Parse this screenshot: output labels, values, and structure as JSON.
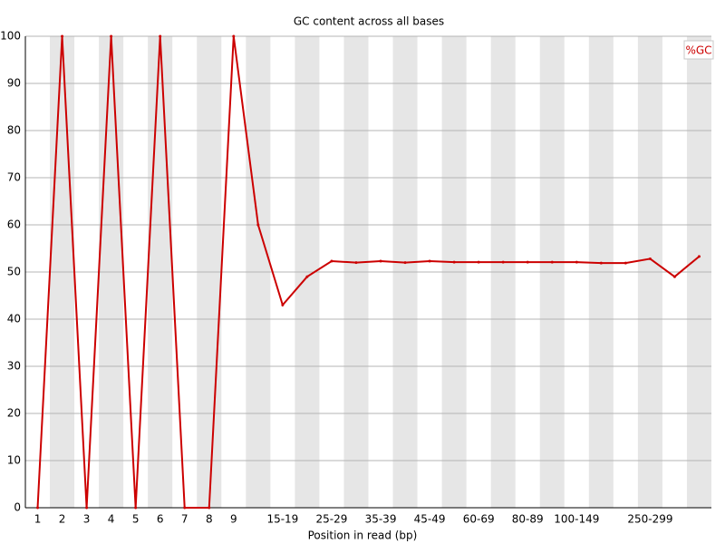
{
  "chart_data": {
    "type": "line",
    "title": "GC content across all bases",
    "x_label": "Position in read (bp)",
    "categories": [
      "1",
      "2",
      "3",
      "4",
      "5",
      "6",
      "7",
      "8",
      "9",
      null,
      "15-19",
      null,
      "25-29",
      null,
      "35-39",
      null,
      "45-49",
      null,
      "60-69",
      null,
      "80-89",
      null,
      "100-149",
      null,
      null,
      "250-299",
      null,
      null
    ],
    "series": [
      {
        "name": "%GC",
        "color": "#cc0000",
        "values": [
          0,
          100,
          0,
          100,
          0,
          100,
          0,
          0,
          100,
          60,
          43,
          49,
          52.3,
          52,
          52.3,
          52,
          52.3,
          52.1,
          52.1,
          52.1,
          52.1,
          52.1,
          52.1,
          51.9,
          51.9,
          52.8,
          49,
          53.3
        ]
      }
    ],
    "ylim": [
      0,
      100
    ],
    "yticks": [
      0,
      10,
      20,
      30,
      40,
      50,
      60,
      70,
      80,
      90,
      100
    ],
    "grid": true,
    "legend": "top-right"
  }
}
